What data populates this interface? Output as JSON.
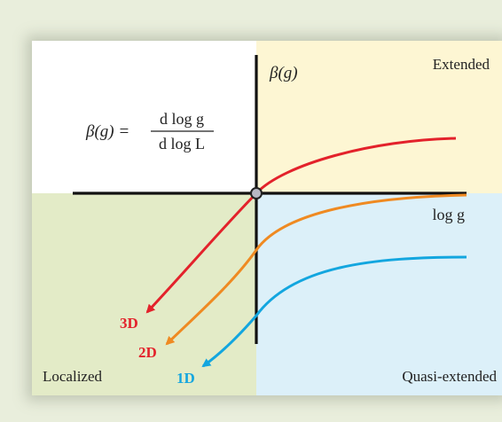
{
  "quadrants": {
    "extended": "Extended",
    "localized": "Localized",
    "quasi_extended": "Quasi-extended"
  },
  "axes": {
    "y_label": "β(g)",
    "x_label": "log g"
  },
  "formula": {
    "lhs": "β(g) =",
    "numerator": "d log g",
    "denominator": "d log L"
  },
  "curves": [
    {
      "name": "3D",
      "color": "#e3222b"
    },
    {
      "name": "2D",
      "color": "#ef8a22"
    },
    {
      "name": "1D",
      "color": "#13a6df"
    }
  ],
  "colors": {
    "background": "#e9eedc",
    "white_quadrant": "#ffffff",
    "extended_quadrant": "#fdf6d3",
    "localized_quadrant": "#e3ebc7",
    "quasi_extended_quadrant": "#dcf0f9",
    "axis": "#111111"
  }
}
